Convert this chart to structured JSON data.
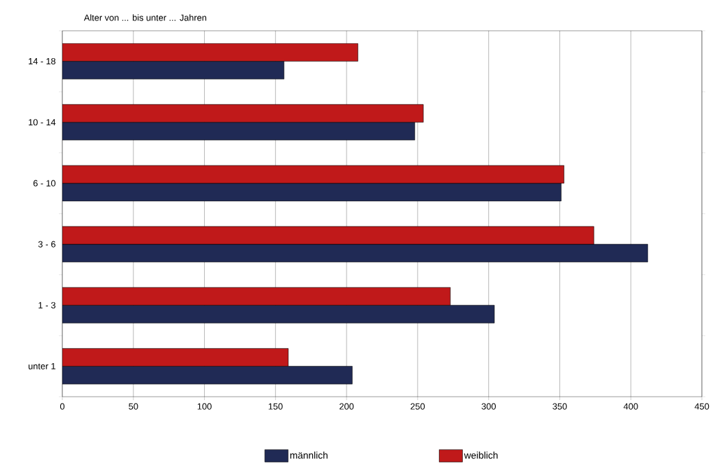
{
  "chart_data": {
    "type": "bar",
    "orientation": "horizontal",
    "ylabel": "Alter von ... bis unter ... Jahren",
    "categories": [
      "14 - 18",
      "10 - 14",
      "6 - 10",
      "3 - 6",
      "1 - 3",
      "unter 1"
    ],
    "series": [
      {
        "name": "männlich",
        "color": "#202a55",
        "values": [
          156,
          248,
          351,
          412,
          304,
          204
        ]
      },
      {
        "name": "weiblich",
        "color": "#c0191a",
        "values": [
          208,
          254,
          353,
          374,
          273,
          159
        ]
      }
    ],
    "xlim": [
      0,
      450
    ],
    "xticks": [
      0,
      50,
      100,
      150,
      200,
      250,
      300,
      350,
      400,
      450
    ],
    "grid": "x",
    "legend": "bottom"
  }
}
